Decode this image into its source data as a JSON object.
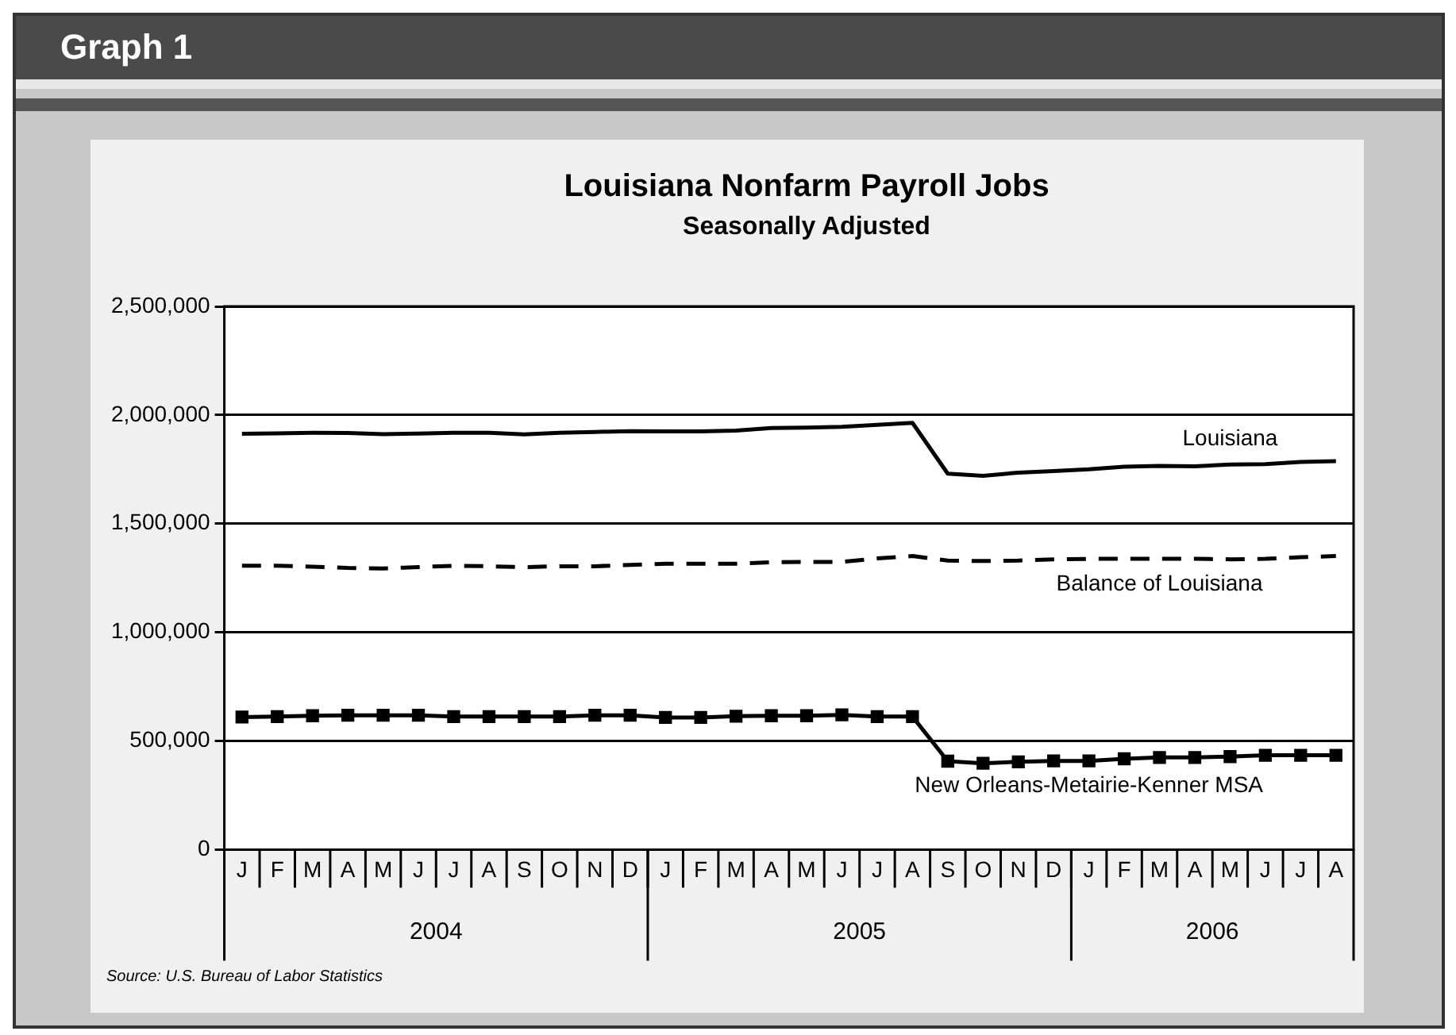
{
  "chart_data": {
    "type": "line",
    "title": "Louisiana Nonfarm Payroll Jobs",
    "subtitle": "Seasonally Adjusted",
    "categories": [
      "J",
      "F",
      "M",
      "A",
      "M",
      "J",
      "J",
      "A",
      "S",
      "O",
      "N",
      "D",
      "J",
      "F",
      "M",
      "A",
      "M",
      "J",
      "J",
      "A",
      "S",
      "O",
      "N",
      "D",
      "J",
      "F",
      "M",
      "A",
      "M",
      "J",
      "J",
      "A"
    ],
    "series": [
      {
        "name": "Louisiana",
        "color": "#000000",
        "line_style": "solid",
        "marker": "none",
        "values": [
          1914000,
          1916000,
          1918000,
          1917000,
          1912000,
          1915000,
          1918000,
          1918000,
          1911000,
          1918000,
          1922000,
          1926000,
          1925000,
          1925000,
          1928000,
          1940000,
          1942000,
          1946000,
          1955000,
          1964000,
          1730000,
          1720000,
          1735000,
          1742000,
          1750000,
          1762000,
          1766000,
          1764000,
          1772000,
          1774000,
          1784000,
          1788000
        ]
      },
      {
        "name": "Balance of Louisiana",
        "color": "#000000",
        "line_style": "dashed",
        "marker": "none",
        "values": [
          1306000,
          1306000,
          1302000,
          1296000,
          1294000,
          1300000,
          1306000,
          1304000,
          1300000,
          1304000,
          1304000,
          1310000,
          1316000,
          1316000,
          1316000,
          1322000,
          1324000,
          1324000,
          1340000,
          1351000,
          1330000,
          1328000,
          1330000,
          1336000,
          1338000,
          1338000,
          1338000,
          1338000,
          1336000,
          1338000,
          1346000,
          1351000
        ]
      },
      {
        "name": "New Orleans-Metairie-Kenner MSA",
        "color": "#000000",
        "line_style": "solid",
        "marker": "square",
        "values": [
          610000,
          612000,
          616000,
          618000,
          618000,
          618000,
          612000,
          612000,
          612000,
          612000,
          618000,
          618000,
          608000,
          608000,
          614000,
          616000,
          616000,
          620000,
          612000,
          612000,
          407000,
          397000,
          404000,
          408000,
          408000,
          418000,
          424000,
          424000,
          428000,
          434000,
          434000,
          434000
        ]
      }
    ],
    "ylim": [
      0,
      2500000
    ],
    "yticks": [
      {
        "value": 0,
        "label": "0"
      },
      {
        "value": 500000,
        "label": "500,000"
      },
      {
        "value": 1000000,
        "label": "1,000,000"
      },
      {
        "value": 1500000,
        "label": "1,500,000"
      },
      {
        "value": 2000000,
        "label": "2,000,000"
      },
      {
        "value": 2500000,
        "label": "2,500,000"
      }
    ],
    "grid": "y",
    "legend": false,
    "annotations": [
      "Graph 1",
      "2004",
      "2005",
      "2006",
      "Source: U.S. Bureau of Labor Statistics"
    ]
  }
}
